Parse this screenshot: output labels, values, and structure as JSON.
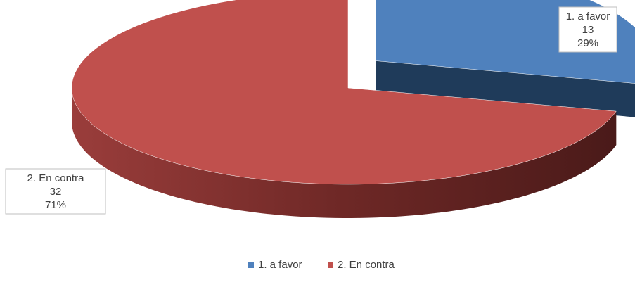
{
  "chart_data": {
    "type": "pie",
    "style": "3d-exploded",
    "slices": [
      {
        "label": "1. a favor",
        "value": 13,
        "percent": "29%",
        "color": "#4F81BD",
        "dark": "#1F3B5A",
        "exploded": true
      },
      {
        "label": "2. En contra",
        "value": 32,
        "percent": "71%",
        "color": "#C0504D",
        "dark": "#5A1E1D",
        "exploded": false
      }
    ],
    "legend": {
      "position": "bottom",
      "items": [
        "1. a favor",
        "2. En contra"
      ]
    },
    "data_labels": {
      "show_category": true,
      "show_value": true,
      "show_percent": true
    }
  }
}
